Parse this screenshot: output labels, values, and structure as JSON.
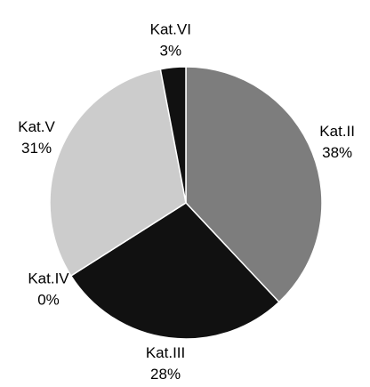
{
  "chart_data": {
    "type": "pie",
    "categories": [
      "Kat.II",
      "Kat.III",
      "Kat.IV",
      "Kat.V",
      "Kat.VI"
    ],
    "values": [
      38,
      28,
      0,
      31,
      3
    ],
    "value_labels": [
      "38%",
      "28%",
      "0%",
      "31%",
      "3%"
    ],
    "colors": [
      "#7d7d7d",
      "#111111",
      "#555555",
      "#cccccc",
      "#111111"
    ]
  }
}
